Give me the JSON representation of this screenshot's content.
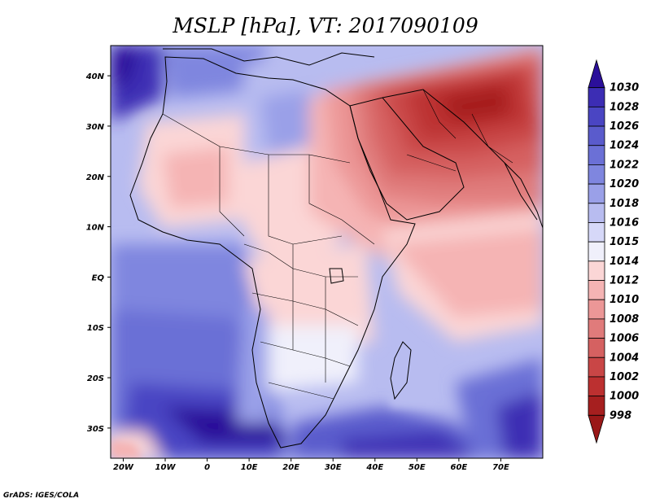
{
  "title": "MSLP [hPa], VT: 2017090109",
  "credit": "GrADS: IGES/COLA",
  "map": {
    "lon_range": [
      -23,
      80
    ],
    "lat_range": [
      -36,
      46
    ],
    "lon_ticks": [
      {
        "value": -20,
        "label": "20W"
      },
      {
        "value": -10,
        "label": "10W"
      },
      {
        "value": 0,
        "label": "0"
      },
      {
        "value": 10,
        "label": "10E"
      },
      {
        "value": 20,
        "label": "20E"
      },
      {
        "value": 30,
        "label": "30E"
      },
      {
        "value": 40,
        "label": "40E"
      },
      {
        "value": 50,
        "label": "50E"
      },
      {
        "value": 60,
        "label": "60E"
      },
      {
        "value": 70,
        "label": "70E"
      }
    ],
    "lat_ticks": [
      {
        "value": 40,
        "label": "40N"
      },
      {
        "value": 30,
        "label": "30N"
      },
      {
        "value": 20,
        "label": "20N"
      },
      {
        "value": 10,
        "label": "10N"
      },
      {
        "value": 0,
        "label": "EQ"
      },
      {
        "value": -10,
        "label": "10S"
      },
      {
        "value": -20,
        "label": "20S"
      },
      {
        "value": -30,
        "label": "30S"
      }
    ]
  },
  "colorbar": {
    "levels": [
      "1030",
      "1028",
      "1026",
      "1024",
      "1022",
      "1020",
      "1018",
      "1016",
      "1015",
      "1014",
      "1012",
      "1010",
      "1008",
      "1006",
      "1004",
      "1002",
      "1000",
      "998"
    ],
    "colors": [
      "#2b0f9a",
      "#3c2db4",
      "#4a45c3",
      "#5a5bcc",
      "#6b70d6",
      "#7f86df",
      "#9aa0e8",
      "#b8bcf0",
      "#d6d8f8",
      "#f0f0fb",
      "#fbd6d6",
      "#f5b4b4",
      "#ec9797",
      "#e07b7b",
      "#d56161",
      "#c94646",
      "#bc3030",
      "#a61f1f",
      "#9a1818"
    ]
  }
}
